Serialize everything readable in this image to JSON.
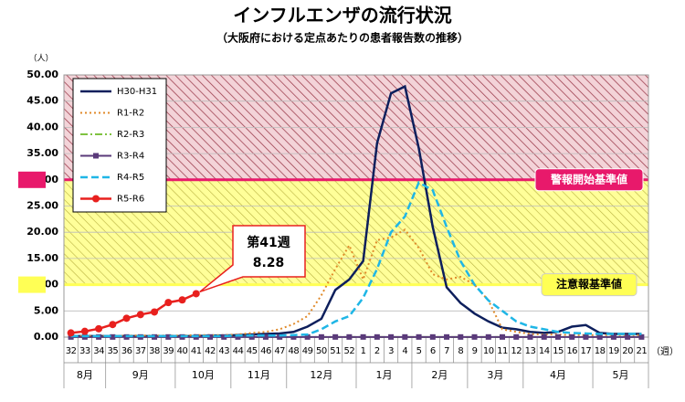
{
  "chart_data": {
    "type": "line",
    "title": "インフルエンザの流行状況",
    "subtitle": "（大阪府における定点あたりの患者報告数の推移）",
    "y_unit": "（人）",
    "x_unit": "（週）",
    "categories": [
      "32",
      "33",
      "34",
      "35",
      "36",
      "37",
      "38",
      "39",
      "40",
      "41",
      "42",
      "43",
      "44",
      "45",
      "46",
      "47",
      "48",
      "49",
      "50",
      "51",
      "52",
      "1",
      "2",
      "3",
      "4",
      "5",
      "6",
      "7",
      "8",
      "9",
      "10",
      "11",
      "12",
      "13",
      "14",
      "15",
      "16",
      "17",
      "18",
      "19",
      "20",
      "21"
    ],
    "months": [
      "8月",
      "9月",
      "10月",
      "11月",
      "12月",
      "1月",
      "2月",
      "3月",
      "4月",
      "5月"
    ],
    "ylim": [
      0,
      50
    ],
    "yticks": [
      {
        "value": 0,
        "label": "0.00"
      },
      {
        "value": 5,
        "label": "5.00"
      },
      {
        "value": 10,
        "label": "10.00"
      },
      {
        "value": 15,
        "label": "15.00"
      },
      {
        "value": 20,
        "label": "20.00"
      },
      {
        "value": 25,
        "label": "25.00"
      },
      {
        "value": 30,
        "label": "30.00"
      },
      {
        "value": 35,
        "label": "35.00"
      },
      {
        "value": 40,
        "label": "40.00"
      },
      {
        "value": 45,
        "label": "45.00"
      },
      {
        "value": 50,
        "label": "50.00"
      }
    ],
    "thresholds": [
      {
        "label": "警報開始基準値",
        "value": 30,
        "color": "#e8196b",
        "band": "#f3d3d8",
        "hatch": "#9a3a4a"
      },
      {
        "label": "注意報基準値",
        "value": 10,
        "color": "#ffff55",
        "band": "#ffff99",
        "hatch": "#b8b040"
      }
    ],
    "annotation": "第41週",
    "series": [
      {
        "name": "H30-H31",
        "color": "#0d1f5c",
        "dash": "",
        "marker": null,
        "width": 2.5,
        "values": [
          0.2,
          0.2,
          0.2,
          0.2,
          0.2,
          0.2,
          0.2,
          0.2,
          0.2,
          0.2,
          0.3,
          0.3,
          0.4,
          0.5,
          0.6,
          0.7,
          1,
          2,
          3.5,
          9,
          11,
          14.5,
          37,
          46.5,
          47.8,
          36,
          21,
          9.5,
          6.5,
          4.5,
          3,
          1.8,
          1.5,
          1,
          0.8,
          1,
          2,
          2.3,
          0.8,
          0.6,
          0.6,
          0.6
        ]
      },
      {
        "name": "R1-R2",
        "color": "#e08a2a",
        "dash": "2 3",
        "marker": null,
        "width": 2,
        "values": [
          0.2,
          0.2,
          0.2,
          0.2,
          0.3,
          0.3,
          0.3,
          0.3,
          0.3,
          0.4,
          0.4,
          0.4,
          0.5,
          0.8,
          1,
          1.5,
          2.5,
          4,
          8,
          13,
          17.5,
          11,
          18.5,
          19,
          20.5,
          17,
          12,
          11,
          11.5,
          10,
          7,
          1.5,
          1,
          0.6,
          0.5,
          0.5,
          0.4,
          0.4,
          0.4,
          0.4,
          0.4,
          0.4
        ]
      },
      {
        "name": "R2-R3",
        "color": "#7fc241",
        "dash": "8 3 2 3",
        "marker": null,
        "width": 2,
        "values": [
          0.02,
          0.02,
          0.02,
          0.02,
          0.02,
          0.02,
          0.02,
          0.02,
          0.02,
          0.02,
          0.02,
          0.02,
          0.02,
          0.02,
          0.02,
          0.02,
          0.02,
          0.02,
          0.02,
          0.02,
          0.02,
          0.02,
          0.02,
          0.02,
          0.02,
          0.02,
          0.02,
          0.02,
          0.02,
          0.02,
          0.02,
          0.02,
          0.02,
          0.02,
          0.02,
          0.02,
          0.02,
          0.02,
          0.02,
          0.02,
          0.02,
          0.02
        ]
      },
      {
        "name": "R3-R4",
        "color": "#5a3a7a",
        "dash": "",
        "marker": "square",
        "width": 2,
        "values": [
          0.03,
          0.03,
          0.03,
          0.03,
          0.03,
          0.03,
          0.03,
          0.03,
          0.03,
          0.03,
          0.03,
          0.03,
          0.03,
          0.03,
          0.03,
          0.03,
          0.03,
          0.03,
          0.03,
          0.03,
          0.03,
          0.03,
          0.03,
          0.03,
          0.03,
          0.03,
          0.03,
          0.03,
          0.03,
          0.03,
          0.03,
          0.03,
          0.03,
          0.03,
          0.03,
          0.03,
          0.03,
          0.03,
          0.03,
          0.03,
          0.03,
          0.03
        ]
      },
      {
        "name": "R4-R5",
        "color": "#1fb6e6",
        "dash": "8 4",
        "marker": null,
        "width": 2.5,
        "values": [
          0.2,
          0.2,
          0.2,
          0.2,
          0.2,
          0.2,
          0.2,
          0.2,
          0.2,
          0.2,
          0.2,
          0.2,
          0.3,
          0.3,
          0.3,
          0.3,
          0.4,
          0.5,
          1.5,
          3,
          4,
          7.5,
          13,
          20,
          23,
          29.5,
          28,
          21,
          14.5,
          10,
          7,
          5,
          3,
          2,
          1.5,
          1,
          0.8,
          0.7,
          0.6,
          0.6,
          0.6,
          0.6
        ]
      },
      {
        "name": "R5-R6",
        "color": "#e8201e",
        "dash": "",
        "marker": "circle",
        "width": 2.5,
        "values": [
          0.8,
          1.1,
          1.6,
          2.4,
          3.6,
          4.3,
          4.8,
          6.6,
          7.1,
          8.28,
          null,
          null,
          null,
          null,
          null,
          null,
          null,
          null,
          null,
          null,
          null,
          null,
          null,
          null,
          null,
          null,
          null,
          null,
          null,
          null,
          null,
          null,
          null,
          null,
          null,
          null,
          null,
          null,
          null,
          null,
          null,
          null
        ]
      }
    ]
  }
}
